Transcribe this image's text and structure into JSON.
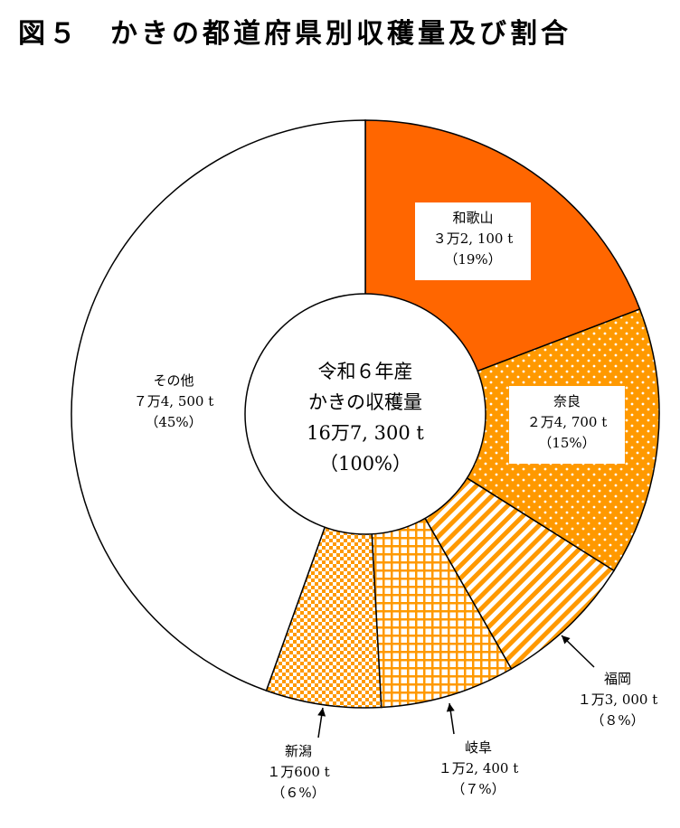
{
  "title": "図５　かきの都道府県別収穫量及び割合",
  "chart_data": {
    "type": "pie",
    "center": {
      "lines": [
        "令和６年産",
        "かきの収穫量",
        "16万7, 300 t",
        "（100%）"
      ]
    },
    "slices": [
      {
        "name": "和歌山",
        "value": 32100,
        "value_text": "３万2, 100 t",
        "percent_text": "（19%）",
        "color": "#FF6600",
        "pattern": "solid"
      },
      {
        "name": "奈良",
        "value": 24700,
        "value_text": "２万4, 700 t",
        "percent_text": "（15%）",
        "color": "#FF9900",
        "pattern": "dots"
      },
      {
        "name": "福岡",
        "value": 13000,
        "value_text": "１万3, 000 t",
        "percent_text": "（８%）",
        "color": "#FF9900",
        "pattern": "diagonal"
      },
      {
        "name": "岐阜",
        "value": 12400,
        "value_text": "１万2, 400 t",
        "percent_text": "（７%）",
        "color": "#FF9900",
        "pattern": "grid"
      },
      {
        "name": "新潟",
        "value": 10600,
        "value_text": "１万600 t",
        "percent_text": "（６%）",
        "color": "#FF9900",
        "pattern": "checker"
      },
      {
        "name": "その他",
        "value": 74500,
        "value_text": "７万4, 500 t",
        "percent_text": "（45%）",
        "color": "#FFFFFF",
        "pattern": "none"
      }
    ]
  }
}
